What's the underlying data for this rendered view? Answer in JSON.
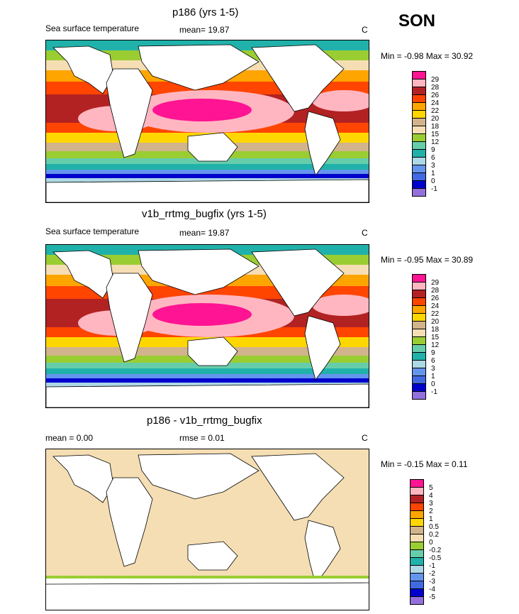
{
  "season": "SON",
  "colors": {
    "abs": [
      "#9370db",
      "#0000cd",
      "#4169e1",
      "#6495ed",
      "#add8e6",
      "#20b2aa",
      "#66cdaa",
      "#9acd32",
      "#f5deb3",
      "#d2b48c",
      "#ffd700",
      "#ffa500",
      "#ff4500",
      "#b22222",
      "#ffb6c1",
      "#ff1493"
    ],
    "diff": [
      "#9370db",
      "#0000cd",
      "#4169e1",
      "#6495ed",
      "#add8e6",
      "#20b2aa",
      "#66cdaa",
      "#9acd32",
      "#f5deb3",
      "#d2b48c",
      "#ffd700",
      "#ffa500",
      "#ff4500",
      "#b22222",
      "#ffb6c1",
      "#ff1493"
    ]
  },
  "panels": [
    {
      "title": "p186 (yrs 1-5)",
      "left_label": "Sea surface temperature",
      "mean_label": "mean=  19.87",
      "units": "C",
      "minmax": "Min =  -0.98 Max =  30.92",
      "levels": [
        "29",
        "28",
        "26",
        "24",
        "22",
        "20",
        "18",
        "15",
        "12",
        "9",
        "6",
        "3",
        "1",
        "0",
        "-1"
      ]
    },
    {
      "title": "v1b_rrtmg_bugfix (yrs 1-5)",
      "left_label": "Sea surface temperature",
      "mean_label": "mean=  19.87",
      "units": "C",
      "minmax": "Min =  -0.95 Max =  30.89",
      "levels": [
        "29",
        "28",
        "26",
        "24",
        "22",
        "20",
        "18",
        "15",
        "12",
        "9",
        "6",
        "3",
        "1",
        "0",
        "-1"
      ]
    },
    {
      "title": "p186 - v1b_rrtmg_bugfix",
      "left_label": "mean =   0.00",
      "mean_label": "rmse =   0.01",
      "units": "C",
      "minmax": "Min =  -0.15 Max =   0.11",
      "levels": [
        "5",
        "4",
        "3",
        "2",
        "1",
        "0.5",
        "0.2",
        "0",
        "-0.2",
        "-0.5",
        "-1",
        "-2",
        "-3",
        "-4",
        "-5"
      ]
    }
  ]
}
